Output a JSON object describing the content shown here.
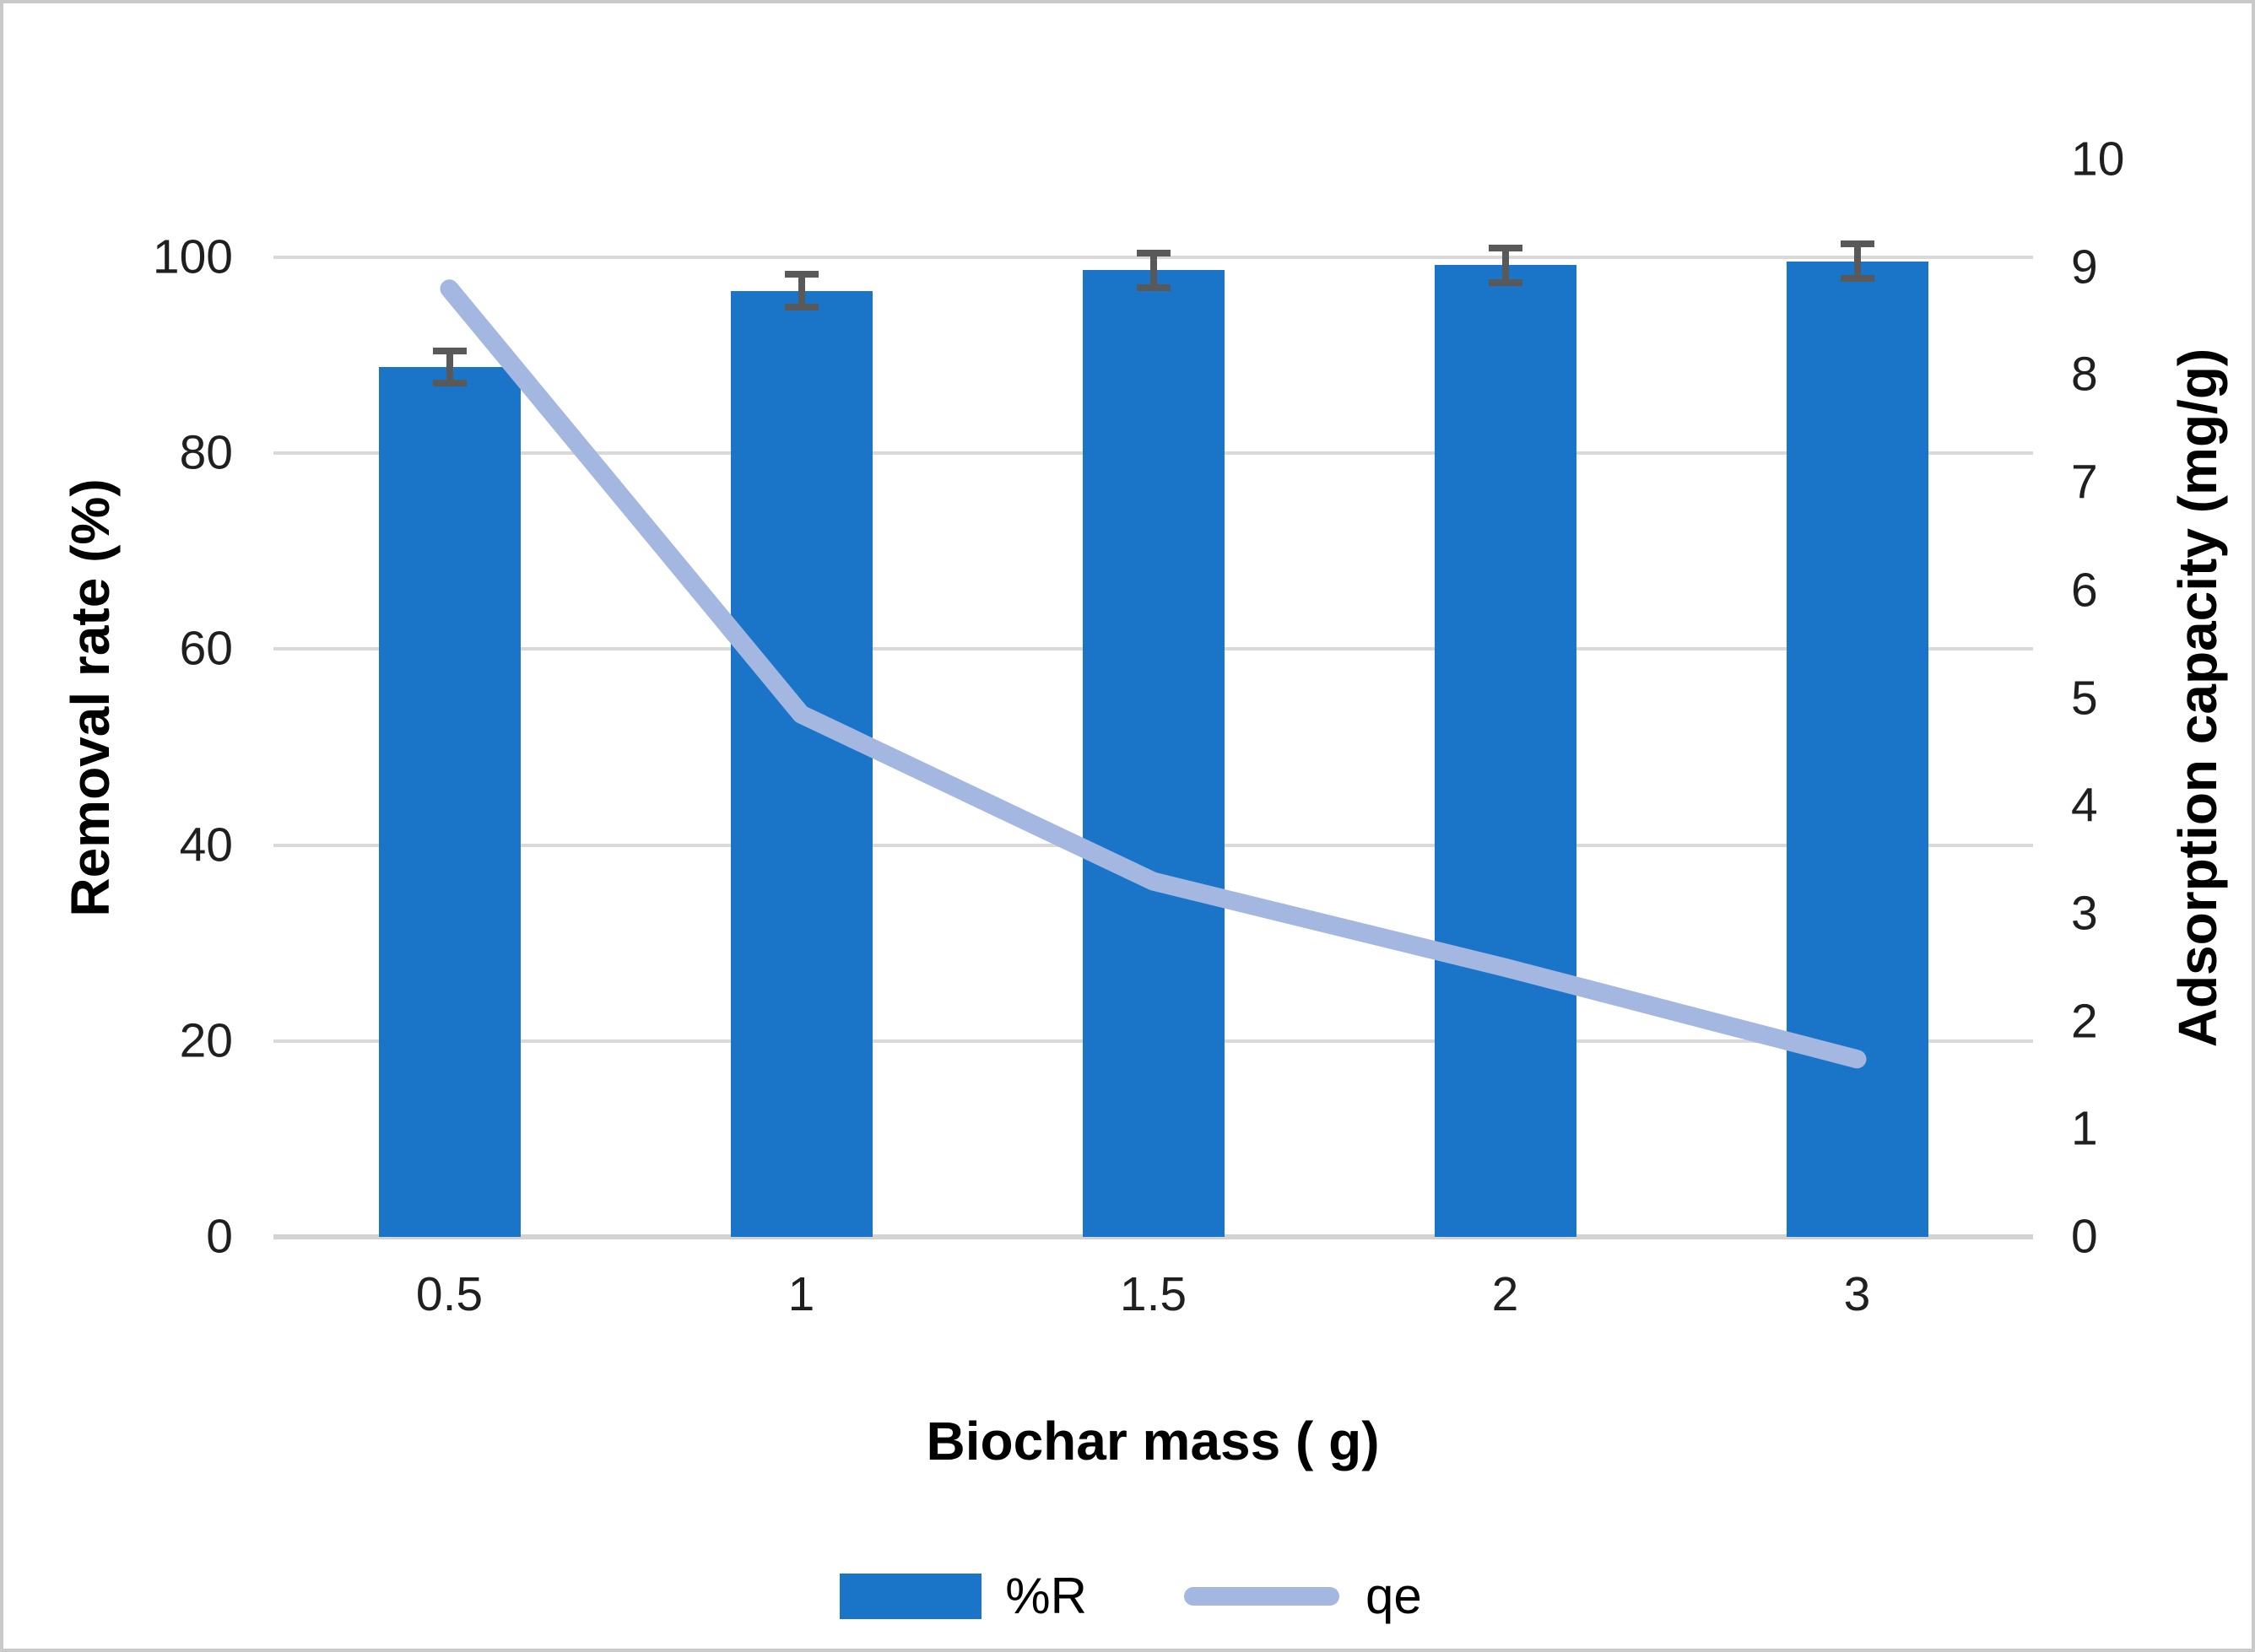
{
  "chart_data": {
    "type": "bar",
    "subtype": "combo-bar-line-dual-axis",
    "categories": [
      "0.5",
      "1",
      "1.5",
      "2",
      "3"
    ],
    "series": [
      {
        "name": "%R",
        "type": "bar",
        "axis": "left",
        "values": [
          88.8,
          96.6,
          98.7,
          99.2,
          99.6
        ],
        "error_bars": [
          2.0,
          2.0,
          2.1,
          2.1,
          2.1
        ],
        "color": "#1a74c8"
      },
      {
        "name": "qe",
        "type": "line",
        "axis": "right",
        "values": [
          8.8,
          4.85,
          3.3,
          2.5,
          1.65
        ],
        "color": "#a4b7e0"
      }
    ],
    "x_axis": {
      "label": "Biochar mass ( g)",
      "tick_labels": [
        "0.5",
        "1",
        "1.5",
        "2",
        "3"
      ]
    },
    "left_axis": {
      "label": "Removal rate (%)",
      "ticks": [
        0,
        20,
        40,
        60,
        80,
        100
      ],
      "range": [
        0,
        110
      ]
    },
    "right_axis": {
      "label": "Adsorption capacity (mg/g)",
      "ticks": [
        0,
        1,
        2,
        3,
        4,
        5,
        6,
        7,
        8,
        9,
        10
      ],
      "range": [
        0,
        10
      ]
    },
    "legend": {
      "entries": [
        "%R",
        "qe"
      ],
      "position": "bottom"
    },
    "grid": "horizontal-major-left-axis-only",
    "title": ""
  },
  "colors": {
    "bar_fill": "#1a74c8",
    "line_stroke": "#a4b7e0",
    "error_bar": "#595959",
    "gridline": "#d9d9d9",
    "axis_line": "#d3d3d3",
    "text": "#1f1f1f",
    "border": "#c9c9c9",
    "background": "#ffffff"
  }
}
